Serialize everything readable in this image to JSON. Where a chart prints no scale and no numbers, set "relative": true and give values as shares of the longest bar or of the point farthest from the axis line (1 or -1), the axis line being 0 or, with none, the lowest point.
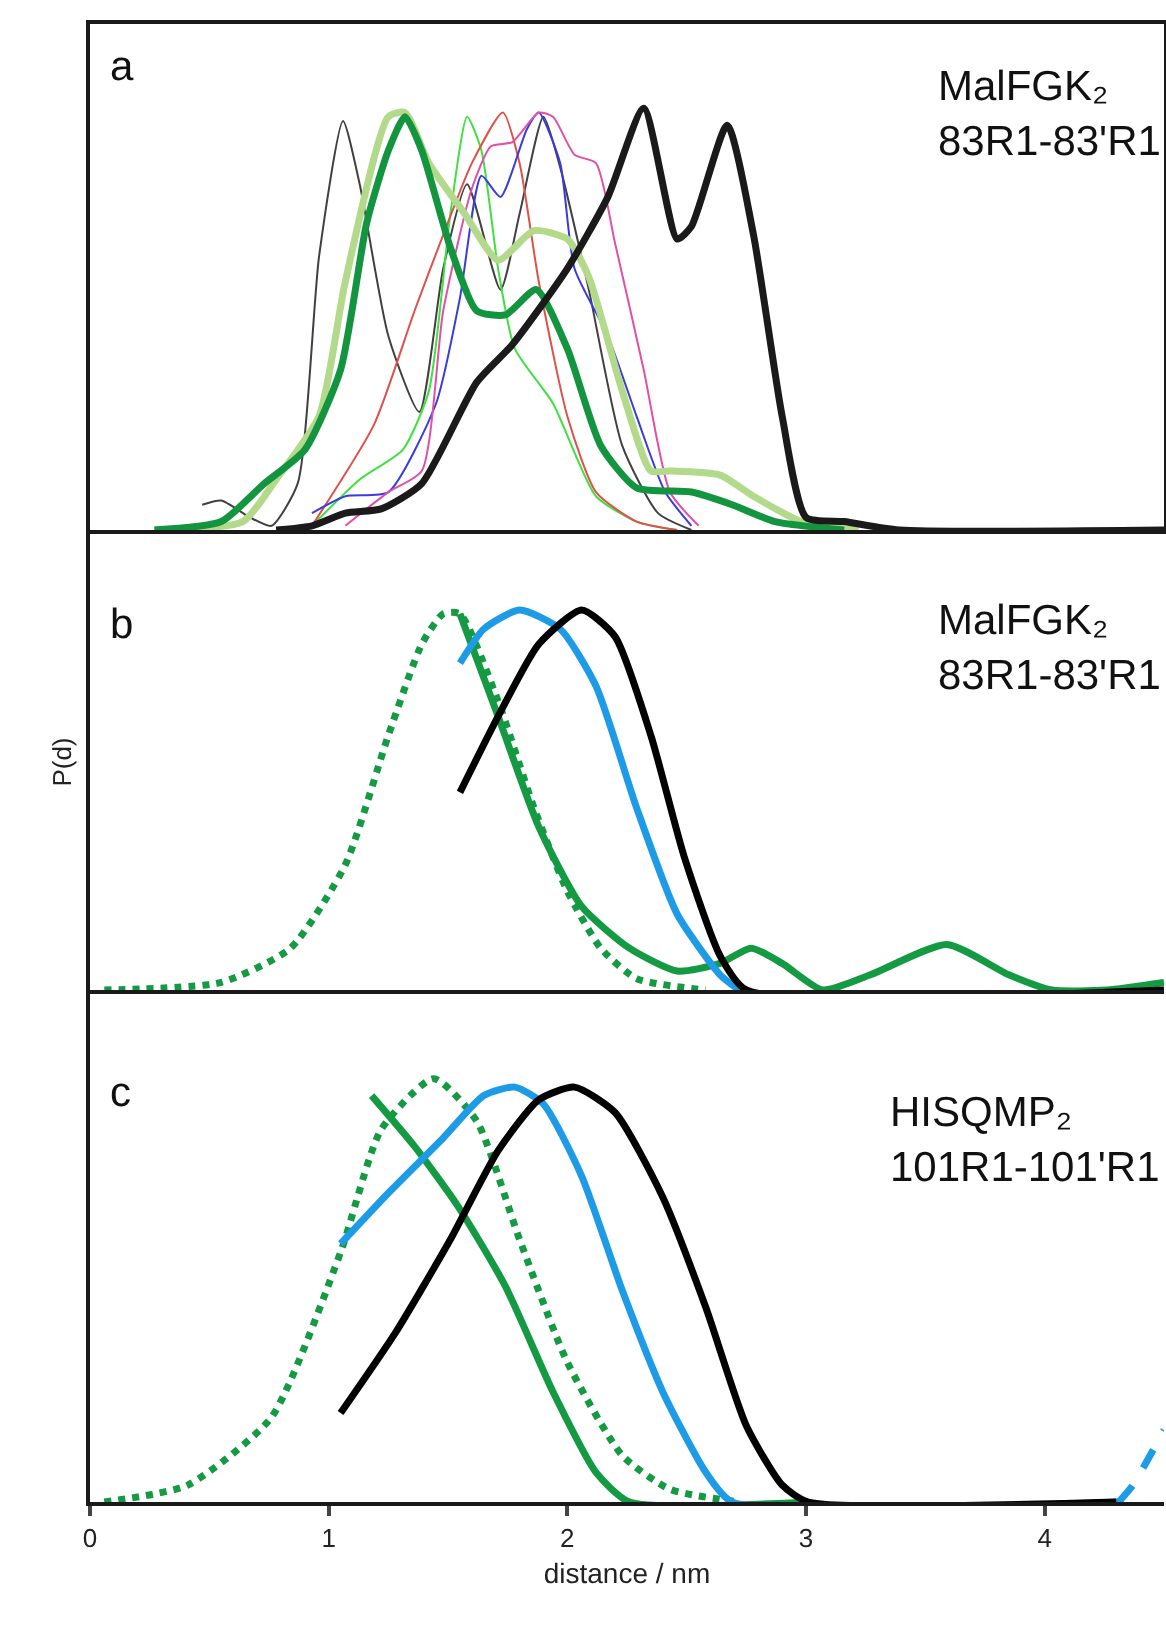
{
  "chart_data": [
    {
      "type": "line",
      "relative": true,
      "xlim": [
        0,
        4.5
      ],
      "tick_labels": false,
      "annotations": [
        "a",
        "MalFGK₂\n83R1-83'R1"
      ],
      "series": [
        {
          "color": "#404040",
          "x": [
            0.47,
            0.55,
            0.67,
            0.76,
            0.87,
            0.96,
            1.06,
            1.13,
            1.25,
            1.38,
            1.48,
            1.58,
            1.72,
            1.8,
            1.9,
            1.97,
            2.09,
            2.23,
            2.38,
            2.52
          ],
          "values": [
            0.06,
            0.07,
            0.03,
            0.01,
            0.11,
            0.65,
            0.97,
            0.82,
            0.46,
            0.28,
            0.62,
            0.82,
            0.57,
            0.75,
            0.98,
            0.86,
            0.57,
            0.2,
            0.04,
            0
          ]
        },
        {
          "color": "#40e040",
          "x": [
            0.93,
            1.13,
            1.31,
            1.42,
            1.51,
            1.58,
            1.64,
            1.71,
            1.78,
            1.94,
            2.12,
            2.29,
            2.46
          ],
          "values": [
            0.01,
            0.12,
            0.19,
            0.33,
            0.75,
            0.98,
            0.9,
            0.62,
            0.43,
            0.3,
            0.08,
            0.02,
            0
          ]
        },
        {
          "color": "#e0504a",
          "x": [
            0.93,
            1.19,
            1.36,
            1.48,
            1.6,
            1.73,
            1.8,
            1.88,
            2.0,
            2.12,
            2.29,
            2.46
          ],
          "values": [
            0.01,
            0.25,
            0.52,
            0.7,
            0.87,
            0.99,
            0.87,
            0.59,
            0.27,
            0.09,
            0.02,
            0
          ]
        },
        {
          "color": "#3a3ae0",
          "x": [
            0.93,
            1.07,
            1.25,
            1.45,
            1.55,
            1.64,
            1.72,
            1.83,
            1.88,
            1.97,
            2.03,
            2.17,
            2.29,
            2.41,
            2.52
          ],
          "values": [
            0.04,
            0.08,
            0.09,
            0.3,
            0.55,
            0.84,
            0.79,
            0.95,
            0.99,
            0.87,
            0.62,
            0.46,
            0.27,
            0.09,
            0.01
          ]
        },
        {
          "color": "#e050a8",
          "x": [
            1.07,
            1.25,
            1.39,
            1.48,
            1.6,
            1.68,
            1.77,
            1.88,
            1.94,
            2.03,
            2.12,
            2.2,
            2.32,
            2.43,
            2.55
          ],
          "values": [
            0.01,
            0.09,
            0.14,
            0.52,
            0.81,
            0.91,
            0.92,
            0.99,
            0.98,
            0.89,
            0.87,
            0.68,
            0.38,
            0.09,
            0.01
          ]
        },
        {
          "color": "#b3d98a",
          "x": [
            0.27,
            0.64,
            0.78,
            0.96,
            1.07,
            1.25,
            1.32,
            1.42,
            1.57,
            1.71,
            1.86,
            2.0,
            2.09,
            2.23,
            2.35,
            2.43,
            2.64,
            2.78,
            2.98,
            3.22
          ],
          "values": [
            0,
            0.02,
            0.12,
            0.27,
            0.59,
            0.98,
            0.99,
            0.87,
            0.75,
            0.64,
            0.71,
            0.69,
            0.6,
            0.33,
            0.14,
            0.14,
            0.13,
            0.08,
            0.02,
            0
          ]
        },
        {
          "color": "#13953f",
          "x": [
            0.27,
            0.55,
            0.73,
            0.9,
            1.05,
            1.16,
            1.25,
            1.32,
            1.39,
            1.51,
            1.62,
            1.74,
            1.87,
            2.0,
            2.14,
            2.29,
            2.52,
            2.69,
            2.87,
            3.16
          ],
          "values": [
            0,
            0.02,
            0.11,
            0.19,
            0.38,
            0.73,
            0.9,
            0.98,
            0.9,
            0.67,
            0.52,
            0.51,
            0.57,
            0.43,
            0.2,
            0.1,
            0.09,
            0.06,
            0.02,
            0
          ]
        },
        {
          "color": "#1a1a1a",
          "x": [
            0.78,
            0.93,
            1.07,
            1.22,
            1.39,
            1.62,
            1.77,
            2.0,
            2.17,
            2.32,
            2.46,
            2.52,
            2.67,
            2.78,
            2.9,
            3.0,
            3.16,
            3.39,
            4.5
          ],
          "values": [
            0,
            0.01,
            0.04,
            0.05,
            0.11,
            0.35,
            0.44,
            0.62,
            0.79,
            1.0,
            0.69,
            0.72,
            0.96,
            0.7,
            0.27,
            0.03,
            0.02,
            0,
            0
          ]
        }
      ]
    },
    {
      "type": "line",
      "relative": true,
      "xlim": [
        0,
        4.5
      ],
      "tick_labels": false,
      "ylabel": "P(d)",
      "annotations": [
        "b",
        "MalFGK₂\n83R1-83'R1"
      ],
      "series": [
        {
          "color": "#139a43",
          "line_style": "dotted",
          "x": [
            0.06,
            0.55,
            0.84,
            1.07,
            1.25,
            1.39,
            1.48,
            1.55,
            1.71,
            1.86,
            2.0,
            2.14,
            2.29,
            2.58
          ],
          "values": [
            0,
            0.02,
            0.11,
            0.33,
            0.67,
            0.91,
            0.99,
            0.99,
            0.76,
            0.48,
            0.26,
            0.11,
            0.03,
            0
          ]
        },
        {
          "color": "#139a43",
          "x": [
            1.55,
            1.71,
            1.88,
            2.06,
            2.26,
            2.46,
            2.64,
            2.77,
            2.9,
            3.07,
            3.27,
            3.59,
            3.85,
            4.03,
            4.26,
            4.5
          ],
          "values": [
            0.99,
            0.72,
            0.43,
            0.22,
            0.11,
            0.05,
            0.07,
            0.11,
            0.07,
            0,
            0.04,
            0.12,
            0.04,
            0,
            0,
            0.02
          ]
        },
        {
          "color": "#1e9be6",
          "x": [
            1.55,
            1.65,
            1.8,
            1.97,
            2.12,
            2.29,
            2.46,
            2.64,
            2.72
          ],
          "values": [
            0.86,
            0.95,
            1.0,
            0.95,
            0.8,
            0.48,
            0.2,
            0.04,
            0
          ]
        },
        {
          "color": "#000000",
          "x": [
            1.55,
            1.71,
            1.88,
            2.06,
            2.2,
            2.35,
            2.49,
            2.64,
            2.75,
            4.5
          ],
          "values": [
            0.52,
            0.72,
            0.91,
            1.0,
            0.93,
            0.67,
            0.35,
            0.09,
            0,
            0
          ]
        }
      ]
    },
    {
      "type": "line",
      "relative": true,
      "xlim": [
        0,
        4.5
      ],
      "xticks": [
        0,
        1,
        2,
        3,
        4
      ],
      "tick_labels": "x",
      "xlabel": "distance / nm",
      "annotations": [
        "c",
        "HISQMP₂\n101R1-101'R1"
      ],
      "series": [
        {
          "color": "#139a43",
          "line_style": "dotted",
          "x": [
            0.06,
            0.41,
            0.76,
            1.05,
            1.22,
            1.44,
            1.62,
            1.8,
            2.0,
            2.23,
            2.43,
            2.72
          ],
          "values": [
            0,
            0.04,
            0.2,
            0.59,
            0.88,
            1.0,
            0.9,
            0.62,
            0.33,
            0.11,
            0.03,
            0
          ]
        },
        {
          "color": "#139a43",
          "x": [
            1.18,
            1.36,
            1.54,
            1.74,
            1.94,
            2.12,
            2.26,
            3.01
          ],
          "values": [
            0.96,
            0.84,
            0.7,
            0.51,
            0.26,
            0.07,
            0,
            0
          ]
        },
        {
          "color": "#1e9be6",
          "x": [
            1.05,
            1.25,
            1.48,
            1.65,
            1.78,
            1.9,
            2.06,
            2.23,
            2.4,
            2.58,
            2.69,
            4.31
          ],
          "values": [
            0.61,
            0.73,
            0.86,
            0.96,
            0.98,
            0.94,
            0.77,
            0.5,
            0.26,
            0.07,
            0,
            0
          ]
        },
        {
          "color": "#1e9be6",
          "line_style": "dashed",
          "x": [
            4.31,
            4.37,
            4.5
          ],
          "values": [
            0,
            0.04,
            0.17
          ]
        },
        {
          "color": "#000000",
          "x": [
            1.05,
            1.28,
            1.51,
            1.71,
            1.88,
            2.03,
            2.2,
            2.4,
            2.58,
            2.75,
            2.9,
            3.01,
            4.3
          ],
          "values": [
            0.21,
            0.4,
            0.62,
            0.83,
            0.95,
            0.98,
            0.92,
            0.72,
            0.46,
            0.18,
            0.04,
            0,
            0
          ]
        }
      ]
    }
  ]
}
